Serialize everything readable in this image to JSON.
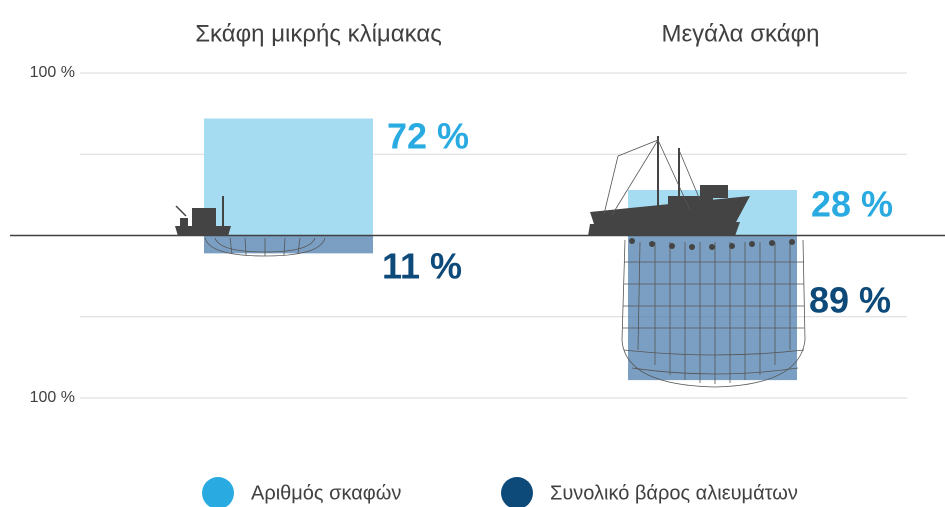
{
  "chart_data": {
    "type": "diverging-bar",
    "categories": [
      "Σκάφη μικρής κλίμακας",
      "Μεγάλα σκάφη"
    ],
    "series": [
      {
        "name": "Αριθμός σκαφών",
        "color": "#29abe2",
        "bar_color": "#a6dcf2",
        "direction": "up",
        "values": [
          72,
          28
        ],
        "value_labels": [
          "72 %",
          "28 %"
        ]
      },
      {
        "name": "Συνολικό βάρος αλιευμάτων",
        "color": "#0d4a7a",
        "bar_color": "#4f7fae",
        "direction": "down",
        "values": [
          11,
          89
        ],
        "value_labels": [
          "11 %",
          "89 %"
        ]
      }
    ],
    "ylim": [
      -100,
      100
    ],
    "yticks": [
      {
        "value": 100,
        "label": "100 %"
      },
      {
        "value": -100,
        "label": "100 %"
      }
    ],
    "gridlines": [
      100,
      50,
      -50,
      -100
    ],
    "legend": "bottom"
  }
}
